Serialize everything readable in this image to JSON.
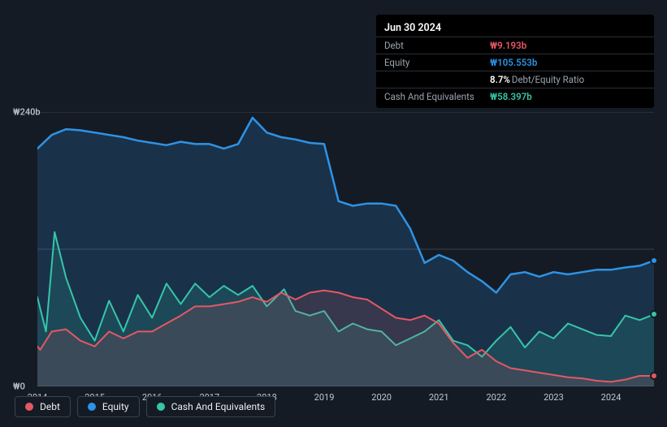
{
  "tooltip": {
    "date": "Jun 30 2024",
    "rows": [
      {
        "label": "Debt",
        "value": "₩9.193b",
        "color": "#e55863",
        "extra": ""
      },
      {
        "label": "Equity",
        "value": "₩105.553b",
        "color": "#2e93e6",
        "extra": ""
      },
      {
        "label": "",
        "value": "8.7%",
        "color": "#ffffff",
        "extra": "Debt/Equity Ratio"
      },
      {
        "label": "Cash And Equivalents",
        "value": "₩58.397b",
        "color": "#36c6a8",
        "extra": ""
      }
    ]
  },
  "chart": {
    "type": "area",
    "background_color": "#151b24",
    "grid_color": "#3a4350",
    "y_axis": {
      "min": 0,
      "max": 240,
      "ticks": [
        {
          "v": 240,
          "label": "₩240b"
        },
        {
          "v": 120,
          "label": ""
        },
        {
          "v": 0,
          "label": "₩0"
        }
      ]
    },
    "x_axis": {
      "min": 2014,
      "max": 2024.75,
      "ticks": [
        2014,
        2015,
        2016,
        2017,
        2018,
        2019,
        2020,
        2021,
        2022,
        2023,
        2024
      ]
    },
    "series": {
      "debt": {
        "label": "Debt",
        "color": "#e55863",
        "fill_opacity": 0.15,
        "line_width": 2,
        "end_dot": true,
        "points": [
          [
            2013.95,
            38
          ],
          [
            2014.05,
            32
          ],
          [
            2014.25,
            48
          ],
          [
            2014.5,
            50
          ],
          [
            2014.75,
            40
          ],
          [
            2015.0,
            35
          ],
          [
            2015.25,
            48
          ],
          [
            2015.5,
            42
          ],
          [
            2015.75,
            48
          ],
          [
            2016.0,
            48
          ],
          [
            2016.25,
            55
          ],
          [
            2016.5,
            62
          ],
          [
            2016.75,
            70
          ],
          [
            2017.0,
            70
          ],
          [
            2017.25,
            72
          ],
          [
            2017.5,
            74
          ],
          [
            2017.75,
            78
          ],
          [
            2018.0,
            74
          ],
          [
            2018.25,
            82
          ],
          [
            2018.5,
            76
          ],
          [
            2018.75,
            82
          ],
          [
            2019.0,
            84
          ],
          [
            2019.25,
            82
          ],
          [
            2019.5,
            78
          ],
          [
            2019.75,
            76
          ],
          [
            2020.0,
            68
          ],
          [
            2020.25,
            60
          ],
          [
            2020.5,
            58
          ],
          [
            2020.75,
            62
          ],
          [
            2021.0,
            55
          ],
          [
            2021.25,
            38
          ],
          [
            2021.5,
            25
          ],
          [
            2021.75,
            32
          ],
          [
            2022.0,
            22
          ],
          [
            2022.25,
            16
          ],
          [
            2022.5,
            14
          ],
          [
            2022.75,
            12
          ],
          [
            2023.0,
            10
          ],
          [
            2023.25,
            8
          ],
          [
            2023.5,
            7
          ],
          [
            2023.75,
            5
          ],
          [
            2024.0,
            4
          ],
          [
            2024.25,
            6
          ],
          [
            2024.5,
            9.2
          ],
          [
            2024.75,
            9.2
          ]
        ]
      },
      "equity": {
        "label": "Equity",
        "color": "#2e93e6",
        "fill_opacity": 0.2,
        "line_width": 2.5,
        "end_dot": true,
        "points": [
          [
            2013.95,
            205
          ],
          [
            2014.0,
            208
          ],
          [
            2014.25,
            220
          ],
          [
            2014.5,
            225
          ],
          [
            2014.75,
            224
          ],
          [
            2015.0,
            222
          ],
          [
            2015.25,
            220
          ],
          [
            2015.5,
            218
          ],
          [
            2015.75,
            215
          ],
          [
            2016.0,
            213
          ],
          [
            2016.25,
            211
          ],
          [
            2016.5,
            214
          ],
          [
            2016.75,
            212
          ],
          [
            2017.0,
            212
          ],
          [
            2017.25,
            208
          ],
          [
            2017.5,
            212
          ],
          [
            2017.75,
            235
          ],
          [
            2018.0,
            222
          ],
          [
            2018.25,
            218
          ],
          [
            2018.5,
            216
          ],
          [
            2018.75,
            213
          ],
          [
            2019.0,
            212
          ],
          [
            2019.25,
            162
          ],
          [
            2019.5,
            158
          ],
          [
            2019.75,
            160
          ],
          [
            2020.0,
            160
          ],
          [
            2020.25,
            158
          ],
          [
            2020.5,
            138
          ],
          [
            2020.75,
            108
          ],
          [
            2021.0,
            115
          ],
          [
            2021.25,
            110
          ],
          [
            2021.5,
            100
          ],
          [
            2021.75,
            92
          ],
          [
            2022.0,
            82
          ],
          [
            2022.25,
            98
          ],
          [
            2022.5,
            100
          ],
          [
            2022.75,
            96
          ],
          [
            2023.0,
            100
          ],
          [
            2023.25,
            98
          ],
          [
            2023.5,
            100
          ],
          [
            2023.75,
            102
          ],
          [
            2024.0,
            102
          ],
          [
            2024.25,
            104
          ],
          [
            2024.5,
            105.5
          ],
          [
            2024.75,
            110
          ]
        ]
      },
      "cash": {
        "label": "Cash And Equivalents",
        "color": "#36c6a8",
        "fill_opacity": 0.15,
        "line_width": 2,
        "end_dot": true,
        "points": [
          [
            2013.95,
            82
          ],
          [
            2014.0,
            78
          ],
          [
            2014.15,
            48
          ],
          [
            2014.3,
            135
          ],
          [
            2014.5,
            95
          ],
          [
            2014.75,
            60
          ],
          [
            2015.0,
            40
          ],
          [
            2015.25,
            75
          ],
          [
            2015.5,
            48
          ],
          [
            2015.75,
            80
          ],
          [
            2016.0,
            60
          ],
          [
            2016.25,
            90
          ],
          [
            2016.5,
            72
          ],
          [
            2016.75,
            90
          ],
          [
            2017.0,
            78
          ],
          [
            2017.25,
            88
          ],
          [
            2017.5,
            80
          ],
          [
            2017.75,
            88
          ],
          [
            2018.0,
            70
          ],
          [
            2018.3,
            85
          ],
          [
            2018.5,
            66
          ],
          [
            2018.75,
            62
          ],
          [
            2019.0,
            66
          ],
          [
            2019.25,
            48
          ],
          [
            2019.5,
            55
          ],
          [
            2019.75,
            50
          ],
          [
            2020.0,
            48
          ],
          [
            2020.25,
            36
          ],
          [
            2020.5,
            42
          ],
          [
            2020.75,
            48
          ],
          [
            2021.0,
            58
          ],
          [
            2021.25,
            40
          ],
          [
            2021.5,
            36
          ],
          [
            2021.75,
            26
          ],
          [
            2022.0,
            40
          ],
          [
            2022.25,
            52
          ],
          [
            2022.5,
            34
          ],
          [
            2022.75,
            48
          ],
          [
            2023.0,
            42
          ],
          [
            2023.25,
            55
          ],
          [
            2023.5,
            50
          ],
          [
            2023.75,
            45
          ],
          [
            2024.0,
            44
          ],
          [
            2024.25,
            62
          ],
          [
            2024.5,
            58
          ],
          [
            2024.75,
            63
          ]
        ]
      }
    },
    "legend_order": [
      "debt",
      "equity",
      "cash"
    ]
  }
}
